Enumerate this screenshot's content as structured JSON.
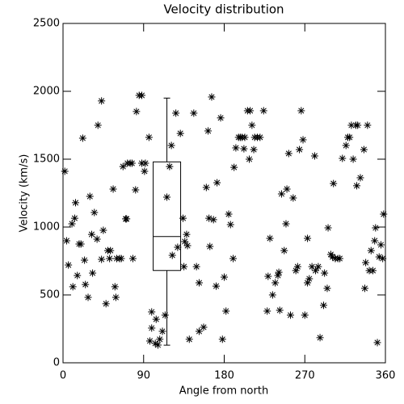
{
  "chart_data": {
    "type": "scatter",
    "title": "Velocity distribution",
    "x_label": "Angle from north",
    "y_label": "Velocity (km/s)",
    "xlim": [
      0,
      360
    ],
    "ylim": [
      0,
      2500
    ],
    "xticks": [
      0,
      90,
      180,
      270,
      360
    ],
    "yticks": [
      0,
      500,
      1000,
      1500,
      2000,
      2500
    ],
    "color": "#000000",
    "x": [
      2,
      4,
      6,
      10,
      11,
      13,
      14,
      16,
      18,
      20,
      22,
      24,
      25,
      28,
      30,
      32,
      33,
      35,
      38,
      39,
      43,
      43,
      45,
      48,
      50,
      52,
      53,
      56,
      58,
      59,
      60,
      63,
      65,
      67,
      70,
      71,
      72,
      75,
      77,
      78,
      81,
      82,
      85,
      88,
      88,
      92,
      91,
      96,
      97,
      99,
      99,
      104,
      103,
      106,
      108,
      111,
      114,
      116,
      119,
      121,
      122,
      126,
      128,
      131,
      134,
      135,
      136,
      138,
      139,
      141,
      146,
      149,
      152,
      152,
      157,
      160,
      162,
      163,
      164,
      166,
      168,
      171,
      172,
      176,
      178,
      180,
      182,
      185,
      187,
      190,
      191,
      193,
      196,
      198,
      200,
      202,
      203,
      206,
      209,
      208,
      211,
      213,
      214,
      217,
      220,
      224,
      228,
      229,
      231,
      234,
      237,
      240,
      241,
      242,
      244,
      247,
      249,
      250,
      252,
      254,
      257,
      260,
      262,
      264,
      266,
      268,
      270,
      273,
      273,
      275,
      278,
      281,
      282,
      285,
      287,
      291,
      292,
      295,
      296,
      299,
      301,
      302,
      304,
      307,
      309,
      312,
      316,
      318,
      320,
      322,
      324,
      327,
      328,
      329,
      332,
      336,
      337,
      340,
      338,
      342,
      344,
      346,
      348,
      349,
      351,
      353,
      355,
      357,
      358
    ],
    "values": [
      1411,
      899,
      720,
      1024,
      560,
      1065,
      1179,
      643,
      875,
      875,
      1655,
      756,
      577,
      482,
      1226,
      946,
      661,
      1107,
      911,
      1750,
      1929,
      762,
      976,
      435,
      827,
      768,
      827,
      1280,
      560,
      482,
      768,
      768,
      768,
      1446,
      1060,
      1060,
      1470,
      1470,
      1470,
      768,
      1274,
      1851,
      1970,
      1970,
      1470,
      1470,
      1411,
      1661,
      161,
      256,
      375,
      321,
      143,
      131,
      173,
      232,
      351,
      1220,
      1446,
      1601,
      792,
      1839,
      851,
      1690,
      1065,
      708,
      893,
      946,
      863,
      173,
      1839,
      708,
      589,
      232,
      262,
      1292,
      1708,
      1065,
      857,
      1958,
      1054,
      565,
      1327,
      1804,
      173,
      631,
      381,
      1095,
      1018,
      768,
      1440,
      1583,
      1661,
      1661,
      1661,
      1577,
      1661,
      1857,
      1857,
      1500,
      1750,
      1571,
      1661,
      1661,
      1661,
      1857,
      381,
      637,
      917,
      500,
      589,
      643,
      667,
      387,
      1244,
      827,
      1024,
      1280,
      1542,
      351,
      1214,
      679,
      708,
      1571,
      1857,
      1643,
      351,
      589,
      917,
      619,
      708,
      1524,
      679,
      708,
      185,
      423,
      661,
      548,
      994,
      798,
      780,
      1321,
      768,
      768,
      768,
      1506,
      1601,
      1661,
      1661,
      1750,
      1500,
      1750,
      1304,
      1750,
      1363,
      1571,
      548,
      1750,
      738,
      679,
      827,
      679,
      899,
      994,
      149,
      780,
      869,
      768,
      1095
    ],
    "box": {
      "x": 116,
      "min": 130,
      "q1": 680,
      "median": 930,
      "q3": 1480,
      "max": 1950
    }
  }
}
